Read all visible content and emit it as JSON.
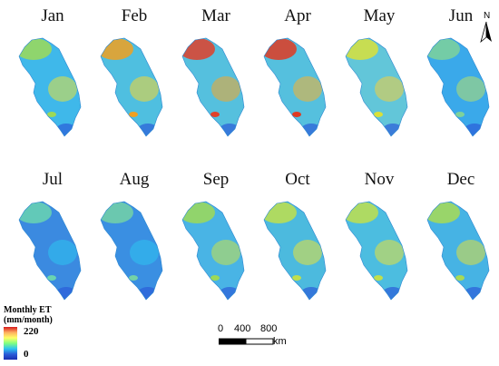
{
  "panels": [
    {
      "month": "Jan",
      "base": "#3fb8ea",
      "hot": [
        "#9dd957",
        "#e8e23a"
      ]
    },
    {
      "month": "Feb",
      "base": "#4fbfe0",
      "hot": [
        "#f0a020",
        "#f7d730"
      ]
    },
    {
      "month": "Mar",
      "base": "#55c0de",
      "hot": [
        "#e0402a",
        "#f5a528"
      ]
    },
    {
      "month": "Apr",
      "base": "#55c0de",
      "hot": [
        "#e03a22",
        "#f7b12e"
      ]
    },
    {
      "month": "May",
      "base": "#62c6d9",
      "hot": [
        "#d9e039",
        "#f2cf3d"
      ]
    },
    {
      "month": "Jun",
      "base": "#3aa9ea",
      "hot": [
        "#7fd29a",
        "#b7e06a"
      ]
    },
    {
      "month": "Jul",
      "base": "#3b8ae0",
      "hot": [
        "#6ad4b0",
        "#2ec4f0"
      ]
    },
    {
      "month": "Aug",
      "base": "#3a8fe2",
      "hot": [
        "#74d2a6",
        "#2ec4f0"
      ]
    },
    {
      "month": "Sep",
      "base": "#49b4e5",
      "hot": [
        "#9dd957",
        "#c9e24a"
      ]
    },
    {
      "month": "Oct",
      "base": "#4cbade",
      "hot": [
        "#c0df4c",
        "#e8e23a"
      ]
    },
    {
      "month": "Nov",
      "base": "#4cbde0",
      "hot": [
        "#c0df4c",
        "#e8e23a"
      ]
    },
    {
      "month": "Dec",
      "base": "#46b3e4",
      "hot": [
        "#a8da55",
        "#e0df3c"
      ]
    }
  ],
  "north_arrow": {
    "label": "N"
  },
  "legend": {
    "title_line1": "Monthly ET",
    "title_line2": "(mm/month)",
    "max": "220",
    "min": "0"
  },
  "scalebar": {
    "ticks": [
      "0",
      "400",
      "800"
    ],
    "unit": "km"
  }
}
